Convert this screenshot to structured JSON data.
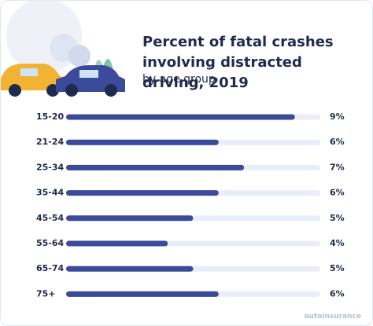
{
  "chart_data": {
    "type": "bar",
    "orientation": "horizontal",
    "title": "Percent of fatal crashes involving distracted driving, 2019",
    "subtitle": "by age group",
    "categories": [
      "15-20",
      "21-24",
      "25-34",
      "35-44",
      "45-54",
      "55-64",
      "65-74",
      "75+"
    ],
    "values": [
      9,
      6,
      7,
      6,
      5,
      4,
      5,
      6
    ],
    "value_labels": [
      "9%",
      "6%",
      "7%",
      "6%",
      "5%",
      "4%",
      "5%",
      "6%"
    ],
    "color": "#3b4a9b",
    "track_color": "#e9edf8",
    "xlim": [
      0,
      10
    ],
    "logo": "autoinsurance"
  }
}
